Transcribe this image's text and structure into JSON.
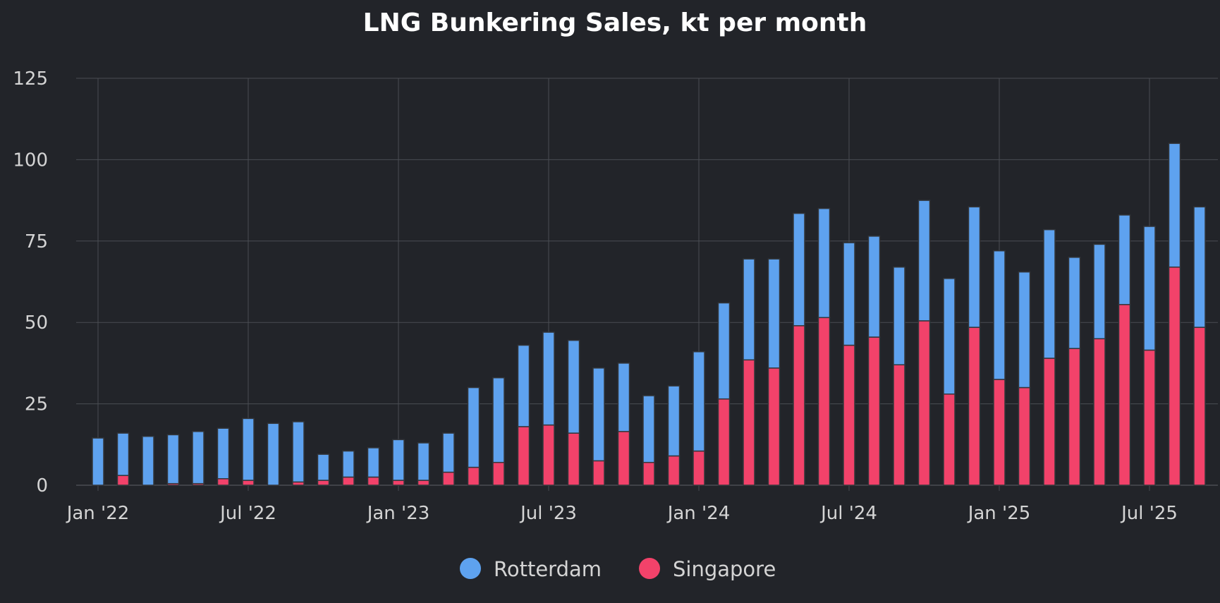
{
  "colors": {
    "background": "#222429",
    "grid": "#4a4d53",
    "text": "#d4d4d4",
    "title": "#ffffff",
    "bar_outline": "#33363b",
    "rotterdam": "#5ea2ef",
    "singapore": "#f2426a"
  },
  "chart_data": {
    "type": "bar",
    "stacked": true,
    "title": "LNG Bunkering Sales, kt per month",
    "xlabel": "",
    "ylabel": "",
    "ylim": [
      0,
      125
    ],
    "yticks": [
      "0",
      "25",
      "50",
      "75",
      "100",
      "125"
    ],
    "grid": true,
    "legend_position": "bottom-center",
    "x_tick_labels": [
      {
        "label": "Jan '22",
        "index": 0
      },
      {
        "label": "Jul '22",
        "index": 6
      },
      {
        "label": "Jan '23",
        "index": 12
      },
      {
        "label": "Jul '23",
        "index": 18
      },
      {
        "label": "Jan '24",
        "index": 24
      },
      {
        "label": "Jul '24",
        "index": 30
      },
      {
        "label": "Jan '25",
        "index": 36
      },
      {
        "label": "Jul '25",
        "index": 42
      }
    ],
    "categories": [
      "Jan 2022",
      "Feb 2022",
      "Mar 2022",
      "Apr 2022",
      "May 2022",
      "Jun 2022",
      "Jul 2022",
      "Aug 2022",
      "Sep 2022",
      "Oct 2022",
      "Nov 2022",
      "Dec 2022",
      "Jan 2023",
      "Feb 2023",
      "Mar 2023",
      "Apr 2023",
      "May 2023",
      "Jun 2023",
      "Jul 2023",
      "Aug 2023",
      "Sep 2023",
      "Oct 2023",
      "Nov 2023",
      "Dec 2023",
      "Jan 2024",
      "Feb 2024",
      "Mar 2024",
      "Apr 2024",
      "May 2024",
      "Jun 2024",
      "Jul 2024",
      "Aug 2024",
      "Sep 2024",
      "Oct 2024",
      "Nov 2024",
      "Dec 2024",
      "Jan 2025",
      "Feb 2025",
      "Mar 2025",
      "Apr 2025",
      "May 2025",
      "Jun 2025",
      "Jul 2025",
      "Aug 2025",
      "Sep 2025"
    ],
    "series": [
      {
        "name": "Singapore",
        "color": "#f2426a",
        "values": [
          0,
          3,
          0,
          0.5,
          0.5,
          2,
          1.5,
          0,
          1,
          1.5,
          2.5,
          2.5,
          1.5,
          1.5,
          4,
          5.5,
          7,
          18,
          18.5,
          16,
          7.5,
          16.5,
          7,
          9,
          10.5,
          26.5,
          38.5,
          36,
          49,
          51.5,
          43,
          45.5,
          37,
          50.5,
          28,
          48.5,
          32.5,
          30,
          39,
          42,
          45,
          55.5,
          41.5,
          67,
          48.5
        ]
      },
      {
        "name": "Rotterdam",
        "color": "#5ea2ef",
        "values": [
          14.5,
          13,
          15,
          15,
          16,
          15.5,
          19,
          19,
          18.5,
          8,
          8,
          9,
          12.5,
          11.5,
          12,
          24.5,
          26,
          25,
          28.5,
          28.5,
          28.5,
          21,
          20.5,
          21.5,
          30.5,
          29.5,
          31,
          33.5,
          34.5,
          33.5,
          31.5,
          31,
          30,
          37,
          35.5,
          37,
          39.5,
          35.5,
          39.5,
          28,
          29,
          27.5,
          38,
          38,
          37
        ]
      }
    ],
    "legend": [
      {
        "name": "Rotterdam",
        "color": "#5ea2ef"
      },
      {
        "name": "Singapore",
        "color": "#f2426a"
      }
    ]
  }
}
